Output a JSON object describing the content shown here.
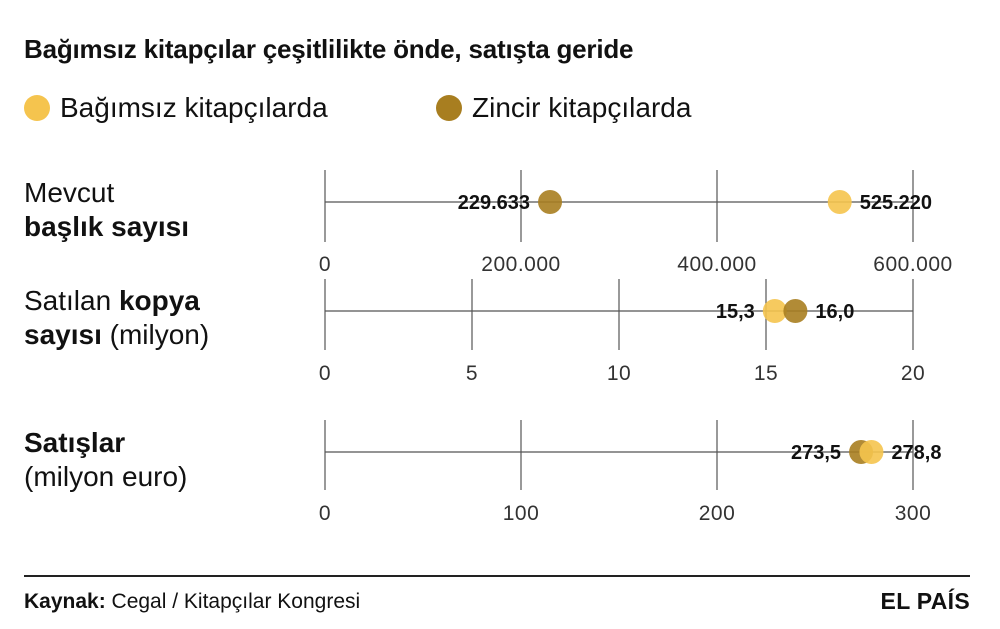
{
  "title": "Bağımsız kitapçılar çeşitlilikte önde, satışta geride",
  "legend": [
    {
      "label": "Bağımsız kitapçılarda",
      "color": "#F5C44E"
    },
    {
      "label": "Zincir kitapçılarda",
      "color": "#A87E20"
    }
  ],
  "row_labels": [
    {
      "line1": "Mevcut",
      "line1b": "",
      "line2": "",
      "line2b": "başlık sayısı"
    },
    {
      "line1": "Satılan ",
      "line1b": "kopya",
      "line2": " (milyon)",
      "line2b": "sayısı"
    },
    {
      "line1": "",
      "line1b": "Satışlar",
      "line2": "(milyon euro)",
      "line2b": ""
    }
  ],
  "chart_data": [
    {
      "type": "scatter",
      "title": "Mevcut başlık sayısı",
      "xlim": [
        0,
        600000
      ],
      "ticks": [
        0,
        200000,
        400000,
        600000
      ],
      "tick_labels": [
        "0",
        "200.000",
        "400.000",
        "600.000"
      ],
      "series": [
        {
          "name": "Bağımsız kitapçılarda",
          "value": 525220,
          "label": "525.220"
        },
        {
          "name": "Zincir kitapçılarda",
          "value": 229633,
          "label": "229.633"
        }
      ]
    },
    {
      "type": "scatter",
      "title": "Satılan kopya sayısı (milyon)",
      "xlim": [
        0,
        20
      ],
      "ticks": [
        0,
        5,
        10,
        15,
        20
      ],
      "tick_labels": [
        "0",
        "5",
        "10",
        "15",
        "20"
      ],
      "series": [
        {
          "name": "Bağımsız kitapçılarda",
          "value": 15.3,
          "label": "15,3"
        },
        {
          "name": "Zincir kitapçılarda",
          "value": 16.0,
          "label": "16,0"
        }
      ]
    },
    {
      "type": "scatter",
      "title": "Satışlar (milyon euro)",
      "xlim": [
        0,
        300
      ],
      "ticks": [
        0,
        100,
        200,
        300
      ],
      "tick_labels": [
        "0",
        "100",
        "200",
        "300"
      ],
      "series": [
        {
          "name": "Bağımsız kitapçılarda",
          "value": 278.8,
          "label": "278,8"
        },
        {
          "name": "Zincir kitapçılarda",
          "value": 273.5,
          "label": "273,5"
        }
      ]
    }
  ],
  "footer": {
    "source_label": "Kaynak:",
    "source_text": " Cegal / Kitapçılar Kongresi",
    "brand": "EL PAÍS"
  }
}
